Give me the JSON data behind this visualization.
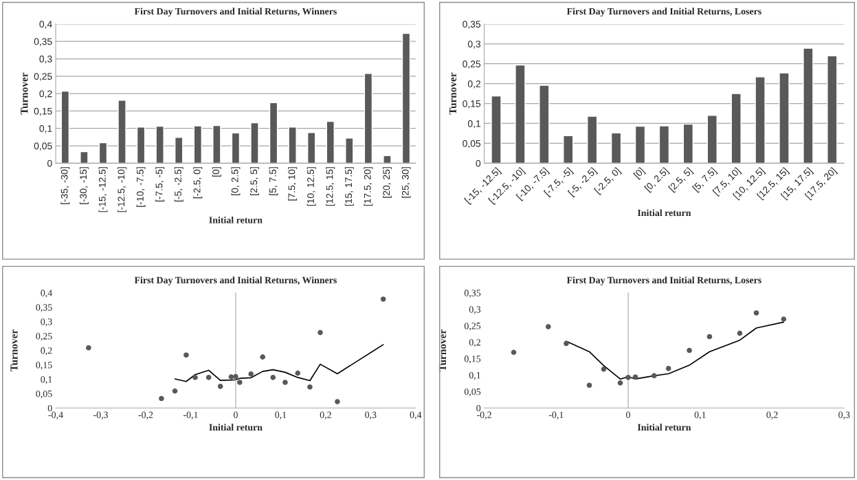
{
  "chart_data": [
    {
      "type": "bar",
      "title": "First Day Turnovers and Initial Returns, Winners",
      "xlabel": "Initial return",
      "ylabel": "Turnover",
      "categories": [
        "[-35, -30]",
        "[-30, -15]",
        "[-15, -12.5]",
        "[-12.5, -10]",
        "[-10, -7.5]",
        "[-7.5, -5]",
        "[-5, -2.5]",
        "[-2.5, 0]",
        "[0]",
        "[0, 2.5]",
        "[2.5, 5]",
        "[5, 7.5]",
        "[7.5, 10]",
        "[10, 12.5]",
        "[12.5, 15]",
        "[15, 17.5]",
        "[17.5, 20]",
        "[20, 25]",
        "[25, 30]"
      ],
      "values": [
        0.207,
        0.033,
        0.059,
        0.181,
        0.104,
        0.106,
        0.074,
        0.107,
        0.108,
        0.087,
        0.116,
        0.174,
        0.104,
        0.088,
        0.12,
        0.072,
        0.258,
        0.022,
        0.373
      ],
      "color": "#595959",
      "ylim": [
        0,
        0.4
      ],
      "yticks": [
        {
          "value": 0,
          "label": "0"
        },
        {
          "value": 0.05,
          "label": "0,05"
        },
        {
          "value": 0.1,
          "label": "0,1"
        },
        {
          "value": 0.15,
          "label": "0,15"
        },
        {
          "value": 0.2,
          "label": "0,2"
        },
        {
          "value": 0.25,
          "label": "0,25"
        },
        {
          "value": 0.3,
          "label": "0,3"
        },
        {
          "value": 0.35,
          "label": "0,35"
        },
        {
          "value": 0.4,
          "label": "0,4"
        }
      ],
      "grid": "y"
    },
    {
      "type": "bar",
      "title": "First Day Turnovers and Initial Returns, Losers",
      "xlabel": "Initial return",
      "ylabel": "Turnover",
      "categories": [
        "[-15, -12.5]",
        "[-12.5, -10]",
        "[-10, -7.5]",
        "[-7.5, -5]",
        "[-5, -2.5]",
        "[-2.5, 0]",
        "[0]",
        "[0, 2.5]",
        "[2.5, 5]",
        "[5, 7.5]",
        "[7.5, 10]",
        "[10, 12.5]",
        "[12.5, 15]",
        "[15, 17.5]",
        "[17.5, 20]"
      ],
      "values": [
        0.169,
        0.247,
        0.196,
        0.069,
        0.118,
        0.076,
        0.093,
        0.094,
        0.098,
        0.12,
        0.175,
        0.217,
        0.227,
        0.289,
        0.27
      ],
      "color": "#595959",
      "ylim": [
        0,
        0.35
      ],
      "yticks": [
        {
          "value": 0,
          "label": "0"
        },
        {
          "value": 0.05,
          "label": "0,05"
        },
        {
          "value": 0.1,
          "label": "0,1"
        },
        {
          "value": 0.15,
          "label": "0,15"
        },
        {
          "value": 0.2,
          "label": "0,2"
        },
        {
          "value": 0.25,
          "label": "0,25"
        },
        {
          "value": 0.3,
          "label": "0,3"
        },
        {
          "value": 0.35,
          "label": "0,35"
        }
      ],
      "grid": "y"
    },
    {
      "type": "scatter",
      "title": "First Day Turnovers and Initial Returns, Winners",
      "xlabel": "Initial return",
      "ylabel": "Turnover",
      "xlim": [
        -0.4,
        0.4
      ],
      "ylim": [
        0,
        0.4
      ],
      "xticks": [
        {
          "value": -0.4,
          "label": "-0,4"
        },
        {
          "value": -0.3,
          "label": "-0,3"
        },
        {
          "value": -0.2,
          "label": "-0,2"
        },
        {
          "value": -0.1,
          "label": "-0,1"
        },
        {
          "value": 0,
          "label": "0"
        },
        {
          "value": 0.1,
          "label": "0,1"
        },
        {
          "value": 0.2,
          "label": "0,2"
        },
        {
          "value": 0.3,
          "label": "0,3"
        },
        {
          "value": 0.4,
          "label": "0,4"
        }
      ],
      "yticks": [
        {
          "value": 0,
          "label": "0"
        },
        {
          "value": 0.05,
          "label": "0,05"
        },
        {
          "value": 0.1,
          "label": "0,1"
        },
        {
          "value": 0.15,
          "label": "0,15"
        },
        {
          "value": 0.2,
          "label": "0,2"
        },
        {
          "value": 0.25,
          "label": "0,25"
        },
        {
          "value": 0.3,
          "label": "0,3"
        },
        {
          "value": 0.35,
          "label": "0,35"
        },
        {
          "value": 0.4,
          "label": "0,4"
        }
      ],
      "series": [
        {
          "type": "scatter",
          "color": "#595959",
          "marker": "circle",
          "x": [
            -0.327,
            -0.165,
            -0.135,
            -0.11,
            -0.09,
            -0.06,
            -0.034,
            -0.01,
            0.0,
            0.009,
            0.034,
            0.06,
            0.083,
            0.11,
            0.138,
            0.165,
            0.188,
            0.226,
            0.328
          ],
          "values": [
            0.209,
            0.033,
            0.059,
            0.184,
            0.106,
            0.106,
            0.075,
            0.108,
            0.109,
            0.089,
            0.118,
            0.177,
            0.106,
            0.089,
            0.121,
            0.073,
            0.262,
            0.022,
            0.378
          ]
        },
        {
          "type": "line",
          "color": "#000000",
          "line_style": "solid",
          "x": [
            -0.135,
            -0.11,
            -0.09,
            -0.06,
            -0.034,
            -0.01,
            0.0,
            0.009,
            0.034,
            0.06,
            0.083,
            0.11,
            0.138,
            0.165,
            0.188,
            0.226,
            0.328
          ],
          "values": [
            0.101,
            0.092,
            0.116,
            0.131,
            0.096,
            0.097,
            0.098,
            0.103,
            0.105,
            0.127,
            0.133,
            0.124,
            0.106,
            0.095,
            0.152,
            0.119,
            0.22
          ]
        }
      ]
    },
    {
      "type": "scatter",
      "title": "First Day Turnovers and Initial Returns, Losers",
      "xlabel": "Initial return",
      "ylabel": "Turnover",
      "xlim": [
        -0.2,
        0.3
      ],
      "ylim": [
        0,
        0.35
      ],
      "xticks": [
        {
          "value": -0.2,
          "label": "-0,2"
        },
        {
          "value": -0.1,
          "label": "-0,1"
        },
        {
          "value": 0,
          "label": "0"
        },
        {
          "value": 0.1,
          "label": "0,1"
        },
        {
          "value": 0.2,
          "label": "0,2"
        },
        {
          "value": 0.3,
          "label": "0,3"
        }
      ],
      "yticks": [
        {
          "value": 0,
          "label": "0"
        },
        {
          "value": 0.05,
          "label": "0,05"
        },
        {
          "value": 0.1,
          "label": "0,1"
        },
        {
          "value": 0.15,
          "label": "0,15"
        },
        {
          "value": 0.2,
          "label": "0,2"
        },
        {
          "value": 0.25,
          "label": "0,25"
        },
        {
          "value": 0.3,
          "label": "0,3"
        },
        {
          "value": 0.35,
          "label": "0,35"
        }
      ],
      "series": [
        {
          "type": "scatter",
          "color": "#595959",
          "marker": "circle",
          "x": [
            -0.159,
            -0.111,
            -0.086,
            -0.054,
            -0.034,
            -0.011,
            0.0,
            0.01,
            0.036,
            0.056,
            0.085,
            0.113,
            0.155,
            0.178,
            0.216
          ],
          "values": [
            0.169,
            0.247,
            0.196,
            0.069,
            0.118,
            0.076,
            0.093,
            0.094,
            0.098,
            0.12,
            0.175,
            0.217,
            0.227,
            0.289,
            0.27
          ]
        },
        {
          "type": "line",
          "color": "#000000",
          "line_style": "solid",
          "x": [
            -0.086,
            -0.054,
            -0.034,
            -0.011,
            0.0,
            0.01,
            0.036,
            0.056,
            0.085,
            0.113,
            0.155,
            0.178,
            0.216
          ],
          "values": [
            0.203,
            0.171,
            0.129,
            0.088,
            0.095,
            0.088,
            0.098,
            0.104,
            0.13,
            0.171,
            0.206,
            0.243,
            0.261
          ]
        }
      ]
    }
  ]
}
